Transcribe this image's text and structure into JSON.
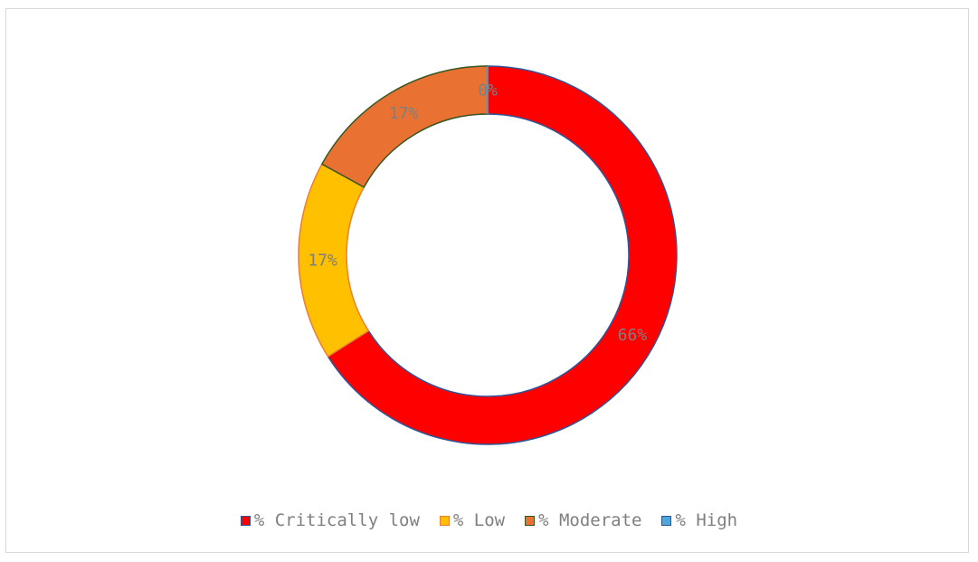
{
  "chart_data": {
    "type": "pie",
    "variant": "doughnut",
    "categories": [
      "% Critically low",
      "% Low",
      "% Moderate",
      "% High"
    ],
    "values": [
      66,
      17,
      17,
      0
    ],
    "data_labels": [
      "66%",
      "17%",
      "17%",
      "0%"
    ],
    "colors": [
      "#ff0000",
      "#ffc000",
      "#e97132",
      "#4ea6dc"
    ],
    "outline_colors": [
      "#2f5597",
      "#ed7d31",
      "#375623",
      "#2f5597"
    ],
    "legend_position": "bottom",
    "title": ""
  }
}
